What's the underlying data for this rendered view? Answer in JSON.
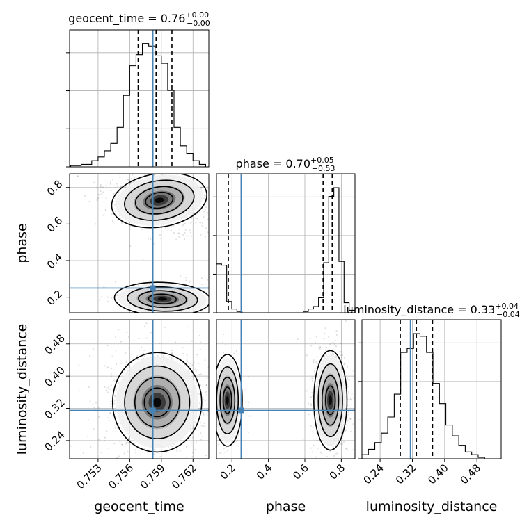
{
  "chart_data": {
    "type": "corner",
    "parameters": [
      "geocent_time",
      "phase",
      "luminosity_distance"
    ],
    "truths": {
      "geocent_time": 0.7582,
      "phase": 0.25,
      "luminosity_distance": 0.315
    },
    "truth_color": "#4682b4",
    "quantile_line_color": "#000000",
    "grid": true,
    "titles": [
      {
        "param": "geocent_time",
        "name": "geocent_time",
        "value": "0.76",
        "plus": "+0.00",
        "minus": "−0.00"
      },
      {
        "param": "phase",
        "name": "phase",
        "value": "0.70",
        "plus": "+0.05",
        "minus": "−0.53"
      },
      {
        "param": "luminosity_distance",
        "name": "luminosity_distance",
        "value": "0.33",
        "plus": "+0.04",
        "minus": "−0.04"
      }
    ],
    "axes": {
      "geocent_time": {
        "range": [
          0.7503,
          0.7635
        ],
        "ticks": [
          0.753,
          0.756,
          0.759,
          0.762
        ],
        "tick_labels": [
          "0.753",
          "0.756",
          "0.759",
          "0.762"
        ]
      },
      "phase": {
        "range": [
          0.115,
          0.875
        ],
        "ticks": [
          0.2,
          0.4,
          0.6,
          0.8
        ],
        "tick_labels": [
          "0.2",
          "0.4",
          "0.6",
          "0.8"
        ]
      },
      "luminosity_distance": {
        "range": [
          0.195,
          0.54
        ],
        "ticks": [
          0.24,
          0.32,
          0.4,
          0.48
        ],
        "tick_labels": [
          "0.24",
          "0.32",
          "0.40",
          "0.48"
        ]
      }
    },
    "histograms": {
      "geocent_time": {
        "bin_edges": [
          0.7504,
          0.7514,
          0.7524,
          0.753,
          0.7536,
          0.7542,
          0.7548,
          0.7554,
          0.756,
          0.7566,
          0.7572,
          0.7578,
          0.7584,
          0.759,
          0.7596,
          0.7602,
          0.7608,
          0.7614,
          0.762,
          0.7626,
          0.7632
        ],
        "counts": [
          1,
          2,
          5,
          8,
          13,
          19,
          32,
          58,
          82,
          91,
          100,
          98,
          90,
          84,
          62,
          32,
          17,
          11,
          5,
          2
        ],
        "quantiles": [
          0.7568,
          0.7585,
          0.76
        ]
      },
      "phase": {
        "bin_edges": [
          0.115,
          0.143,
          0.171,
          0.199,
          0.227,
          0.255,
          0.283,
          0.311,
          0.339,
          0.367,
          0.395,
          0.423,
          0.451,
          0.479,
          0.507,
          0.535,
          0.563,
          0.591,
          0.619,
          0.647,
          0.675,
          0.703,
          0.731,
          0.759,
          0.787,
          0.815,
          0.843,
          0.875
        ],
        "counts": [
          39,
          38,
          9,
          3,
          1,
          0,
          0,
          0,
          0,
          0,
          0,
          0,
          0,
          0,
          0,
          0,
          0,
          1,
          3,
          5,
          12,
          40,
          93,
          100,
          41,
          8,
          2
        ],
        "quantiles": [
          0.18,
          0.7,
          0.75
        ]
      },
      "luminosity_distance": {
        "bin_edges": [
          0.195,
          0.211,
          0.227,
          0.243,
          0.259,
          0.275,
          0.291,
          0.307,
          0.323,
          0.339,
          0.355,
          0.371,
          0.387,
          0.403,
          0.419,
          0.435,
          0.451,
          0.467,
          0.483,
          0.499,
          0.515,
          0.54
        ],
        "counts": [
          3,
          7,
          12,
          19,
          31,
          48,
          79,
          82,
          93,
          91,
          79,
          56,
          41,
          25,
          17,
          10,
          5,
          3,
          1,
          0,
          0
        ],
        "quantiles": [
          0.29,
          0.33,
          0.37
        ]
      }
    },
    "joint": [
      {
        "x": "geocent_time",
        "y": "phase",
        "modes": [
          {
            "cx": 0.7588,
            "cy": 0.73,
            "sx": 0.0014,
            "sy": 0.045,
            "tilt": -0.45,
            "weight": 0.8
          },
          {
            "cx": 0.7591,
            "cy": 0.19,
            "sx": 0.0014,
            "sy": 0.028,
            "tilt": 0.1,
            "weight": 0.2
          }
        ]
      },
      {
        "x": "geocent_time",
        "y": "luminosity_distance",
        "modes": [
          {
            "cx": 0.7586,
            "cy": 0.335,
            "sx": 0.0013,
            "sy": 0.038,
            "tilt": 0.0,
            "weight": 1.0
          }
        ]
      },
      {
        "x": "phase",
        "y": "luminosity_distance",
        "modes": [
          {
            "cx": 0.74,
            "cy": 0.34,
            "sx": 0.028,
            "sy": 0.038,
            "tilt": 0.0,
            "weight": 0.75
          },
          {
            "cx": 0.175,
            "cy": 0.34,
            "sx": 0.025,
            "sy": 0.035,
            "tilt": 0.0,
            "weight": 0.25
          }
        ]
      }
    ]
  }
}
